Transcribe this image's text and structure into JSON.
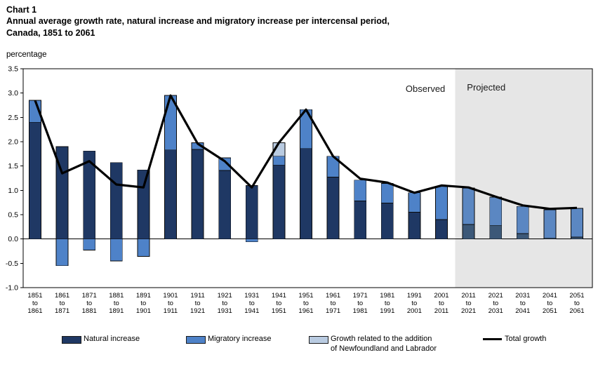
{
  "header": {
    "chart_label": "Chart 1",
    "title_line1": "Annual average growth rate, natural increase and migratory increase per intercensal period,",
    "title_line2": "Canada, 1851 to 2061"
  },
  "legend": {
    "items": [
      {
        "key": "natural-increase",
        "label": "Natural increase",
        "color": "#1F3864"
      },
      {
        "key": "migratory-increase",
        "label": "Migratory increase",
        "color": "#4E82C8"
      },
      {
        "key": "newfoundland-addition",
        "label": "Growth related to the addition\nof Newfoundland and Labrador",
        "color": "#B9CBE1"
      },
      {
        "key": "total-growth",
        "label": "Total growth",
        "color": "#000000",
        "shape": "line"
      }
    ]
  },
  "chart_data": {
    "type": "bar",
    "stacked": true,
    "title": "Annual average growth rate, natural increase and migratory increase per intercensal period, Canada, 1851 to 2061",
    "ylabel": "percentage",
    "ylim": [
      -1.0,
      3.5
    ],
    "ytick_step": 0.5,
    "grid": false,
    "legend_position": "bottom",
    "annotations": {
      "observed": "Observed",
      "projected": "Projected"
    },
    "projected_start_index": 16,
    "projected_background": "#E6E6E6",
    "categories": [
      {
        "start": "1851",
        "mid": "to",
        "end": "1861"
      },
      {
        "start": "1861",
        "mid": "to",
        "end": "1871"
      },
      {
        "start": "1871",
        "mid": "to",
        "end": "1881"
      },
      {
        "start": "1881",
        "mid": "to",
        "end": "1891"
      },
      {
        "start": "1891",
        "mid": "to",
        "end": "1901"
      },
      {
        "start": "1901",
        "mid": "to",
        "end": "1911"
      },
      {
        "start": "1911",
        "mid": "to",
        "end": "1921"
      },
      {
        "start": "1921",
        "mid": "to",
        "end": "1931"
      },
      {
        "start": "1931",
        "mid": "to",
        "end": "1941"
      },
      {
        "start": "1941",
        "mid": "to",
        "end": "1951"
      },
      {
        "start": "1951",
        "mid": "to",
        "end": "1961"
      },
      {
        "start": "1961",
        "mid": "to",
        "end": "1971"
      },
      {
        "start": "1971",
        "mid": "to",
        "end": "1981"
      },
      {
        "start": "1981",
        "mid": "to",
        "end": "1991"
      },
      {
        "start": "1991",
        "mid": "to",
        "end": "2001"
      },
      {
        "start": "2001",
        "mid": "to",
        "end": "2011"
      },
      {
        "start": "2011",
        "mid": "to",
        "end": "2021"
      },
      {
        "start": "2021",
        "mid": "to",
        "end": "2031"
      },
      {
        "start": "2031",
        "mid": "to",
        "end": "2041"
      },
      {
        "start": "2041",
        "mid": "to",
        "end": "2051"
      },
      {
        "start": "2051",
        "mid": "to",
        "end": "2061"
      }
    ],
    "series": [
      {
        "name": "Natural increase",
        "color": "#1F3864",
        "projected_color": "#3C5878",
        "values": [
          2.4,
          1.9,
          1.81,
          1.57,
          1.42,
          1.83,
          1.84,
          1.41,
          1.1,
          1.52,
          1.86,
          1.27,
          0.78,
          0.74,
          0.55,
          0.4,
          0.3,
          0.28,
          0.11,
          0.02,
          0.04
        ]
      },
      {
        "name": "Migratory increase",
        "color": "#4E82C8",
        "projected_color": "#5B87C2",
        "values": [
          0.45,
          -0.55,
          -0.23,
          -0.45,
          -0.36,
          1.12,
          0.14,
          0.26,
          -0.06,
          0.18,
          0.8,
          0.43,
          0.43,
          0.4,
          0.4,
          0.68,
          0.75,
          0.58,
          0.56,
          0.58,
          0.59
        ]
      },
      {
        "name": "Growth related to the addition of Newfoundland and Labrador",
        "color": "#B9CBE1",
        "projected_color": "#B9CBE1",
        "values": [
          0,
          0,
          0,
          0,
          0,
          0,
          0,
          0,
          0,
          0.28,
          0,
          0,
          0,
          0,
          0,
          0,
          0,
          0,
          0,
          0,
          0
        ]
      }
    ],
    "line": {
      "name": "Total growth",
      "color": "#000000",
      "values": [
        2.85,
        1.35,
        1.6,
        1.12,
        1.06,
        2.95,
        1.96,
        1.6,
        1.06,
        1.98,
        2.66,
        1.7,
        1.24,
        1.16,
        0.95,
        1.1,
        1.06,
        0.87,
        0.69,
        0.62,
        0.64
      ]
    }
  }
}
